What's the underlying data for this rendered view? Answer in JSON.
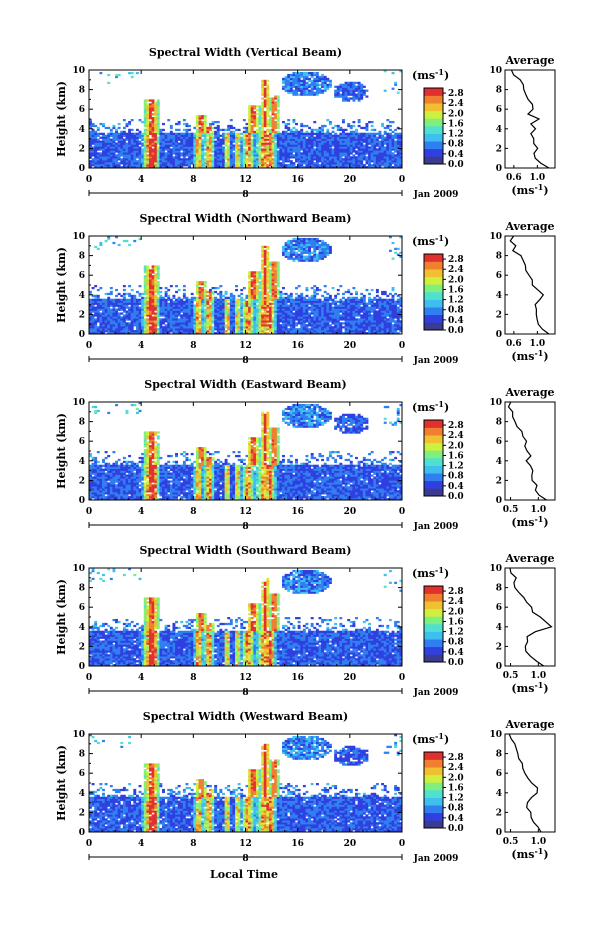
{
  "figure": {
    "xlabel": "Local Time",
    "date_label": "Jan 2009",
    "day_label": "8",
    "colorbar_unit": "(ms",
    "colorbar_unit_exp": "-1",
    "colorbar_unit_close": ")",
    "average_title": "Average",
    "average_xunit": "(ms",
    "average_xunit_exp": "-1",
    "average_xunit_close": ")",
    "colors": {
      "colormap": [
        "#3b3b8f",
        "#2f3fe0",
        "#2f7ff0",
        "#3fbff0",
        "#4fe0d0",
        "#7ff07f",
        "#d0f040",
        "#f0c030",
        "#f07f30",
        "#e03030"
      ],
      "background": "#ffffff",
      "line": "#000000"
    }
  },
  "chart_data": [
    {
      "type": "heatmap",
      "title": "Spectral Width (Vertical Beam)",
      "ylabel": "Height (km)",
      "xlim": [
        0,
        24
      ],
      "ylim": [
        0,
        10
      ],
      "xticks": [
        "0",
        "4",
        "8",
        "12",
        "16",
        "20",
        "0"
      ],
      "yticks": [
        "0",
        "2",
        "4",
        "6",
        "8",
        "10"
      ],
      "colorbar_ticks": [
        "2.8",
        "2.4",
        "2.0",
        "1.6",
        "1.2",
        "0.8",
        "0.4",
        "0.0"
      ],
      "colorbar_range": [
        0,
        3.0
      ],
      "profile": {
        "xticks": [
          "0.6",
          "1.0"
        ],
        "xlim": [
          0.45,
          1.3
        ],
        "x": [
          1.2,
          1.05,
          0.98,
          0.96,
          1.0,
          0.94,
          0.92,
          0.88,
          0.95,
          0.9,
          1.02,
          0.86,
          0.95,
          0.9,
          0.86,
          0.8,
          0.78,
          0.74,
          0.7,
          0.62,
          0.58
        ],
        "y": [
          0,
          0.5,
          1,
          1.5,
          2,
          2.5,
          3,
          3.5,
          4,
          4.5,
          5,
          5.5,
          6,
          6.5,
          7,
          7.5,
          8,
          8.5,
          9,
          9.5,
          10
        ]
      }
    },
    {
      "type": "heatmap",
      "title": "Spectral Width (Northward Beam)",
      "ylabel": "Height (km)",
      "xlim": [
        0,
        24
      ],
      "ylim": [
        0,
        10
      ],
      "xticks": [
        "0",
        "4",
        "8",
        "12",
        "16",
        "20",
        "0"
      ],
      "yticks": [
        "0",
        "2",
        "4",
        "6",
        "8",
        "10"
      ],
      "colorbar_ticks": [
        "2.8",
        "2.4",
        "2.0",
        "1.6",
        "1.2",
        "0.8",
        "0.4",
        "0.0"
      ],
      "colorbar_range": [
        0,
        3.0
      ],
      "profile": {
        "xticks": [
          "0.6",
          "1.0"
        ],
        "xlim": [
          0.45,
          1.3
        ],
        "x": [
          1.2,
          1.1,
          1.0,
          0.98,
          0.96,
          1.0,
          0.98,
          1.05,
          1.1,
          1.02,
          0.92,
          0.9,
          0.85,
          0.78,
          0.82,
          0.76,
          0.7,
          0.6,
          0.62,
          0.56,
          0.58
        ],
        "y": [
          0,
          0.5,
          1,
          1.5,
          2,
          2.5,
          3,
          3.5,
          4,
          4.5,
          5,
          5.5,
          6,
          6.5,
          7,
          7.5,
          8,
          8.5,
          9,
          9.5,
          10
        ]
      }
    },
    {
      "type": "heatmap",
      "title": "Spectral Width (Eastward Beam)",
      "ylabel": "Height (km)",
      "xlim": [
        0,
        24
      ],
      "ylim": [
        0,
        10
      ],
      "xticks": [
        "0",
        "4",
        "8",
        "12",
        "16",
        "20",
        "0"
      ],
      "yticks": [
        "0",
        "2",
        "4",
        "6",
        "8",
        "10"
      ],
      "colorbar_ticks": [
        "2.8",
        "2.4",
        "2.0",
        "1.6",
        "1.2",
        "0.8",
        "0.4",
        "0.0"
      ],
      "colorbar_range": [
        0,
        3.0
      ],
      "profile": {
        "xticks": [
          "0.5",
          "1.0"
        ],
        "xlim": [
          0.4,
          1.3
        ],
        "x": [
          1.15,
          1.0,
          0.95,
          0.98,
          0.9,
          0.86,
          0.9,
          0.84,
          0.8,
          0.88,
          0.82,
          0.76,
          0.8,
          0.74,
          0.68,
          0.62,
          0.58,
          0.54,
          0.52,
          0.48,
          0.5
        ],
        "y": [
          0,
          0.5,
          1,
          1.5,
          2,
          2.5,
          3,
          3.5,
          4,
          4.5,
          5,
          5.5,
          6,
          6.5,
          7,
          7.5,
          8,
          8.5,
          9,
          9.5,
          10
        ]
      }
    },
    {
      "type": "heatmap",
      "title": "Spectral Width (Southward Beam)",
      "ylabel": "Height (km)",
      "xlim": [
        0,
        24
      ],
      "ylim": [
        0,
        10
      ],
      "xticks": [
        "0",
        "4",
        "8",
        "12",
        "16",
        "20",
        "0"
      ],
      "yticks": [
        "0",
        "2",
        "4",
        "6",
        "8",
        "10"
      ],
      "colorbar_ticks": [
        "2.8",
        "2.4",
        "2.0",
        "1.6",
        "1.2",
        "0.8",
        "0.4",
        "0.0"
      ],
      "colorbar_range": [
        0,
        3.0
      ],
      "profile": {
        "xticks": [
          "0.5",
          "1.0"
        ],
        "xlim": [
          0.4,
          1.3
        ],
        "x": [
          1.1,
          0.98,
          0.88,
          0.8,
          0.76,
          0.8,
          0.78,
          0.95,
          1.22,
          1.15,
          1.02,
          0.92,
          0.86,
          0.8,
          0.72,
          0.66,
          0.6,
          0.55,
          0.58,
          0.52,
          0.5
        ],
        "y": [
          0,
          0.5,
          1,
          1.5,
          2,
          2.5,
          3,
          3.5,
          4,
          4.5,
          5,
          5.5,
          6,
          6.5,
          7,
          7.5,
          8,
          8.5,
          9,
          9.5,
          10
        ]
      }
    },
    {
      "type": "heatmap",
      "title": "Spectral Width (Westward Beam)",
      "ylabel": "Height (km)",
      "xlim": [
        0,
        24
      ],
      "ylim": [
        0,
        10
      ],
      "xticks": [
        "0",
        "4",
        "8",
        "12",
        "16",
        "20",
        "0"
      ],
      "yticks": [
        "0",
        "2",
        "4",
        "6",
        "8",
        "10"
      ],
      "colorbar_ticks": [
        "2.8",
        "2.4",
        "2.0",
        "1.6",
        "1.2",
        "0.8",
        "0.4",
        "0.0"
      ],
      "colorbar_range": [
        0,
        3.0
      ],
      "profile": {
        "xticks": [
          "0.5",
          "1.0"
        ],
        "xlim": [
          0.4,
          1.3
        ],
        "x": [
          1.05,
          0.98,
          0.9,
          0.86,
          0.84,
          0.8,
          0.82,
          0.9,
          0.98,
          1.0,
          0.88,
          0.8,
          0.76,
          0.72,
          0.7,
          0.66,
          0.62,
          0.58,
          0.55,
          0.52,
          0.5
        ],
        "y": [
          0,
          0.5,
          1,
          1.5,
          2,
          2.5,
          3,
          3.5,
          4,
          4.5,
          5,
          5.5,
          6,
          6.5,
          7,
          7.5,
          8,
          8.5,
          9,
          9.5,
          10
        ]
      }
    }
  ]
}
